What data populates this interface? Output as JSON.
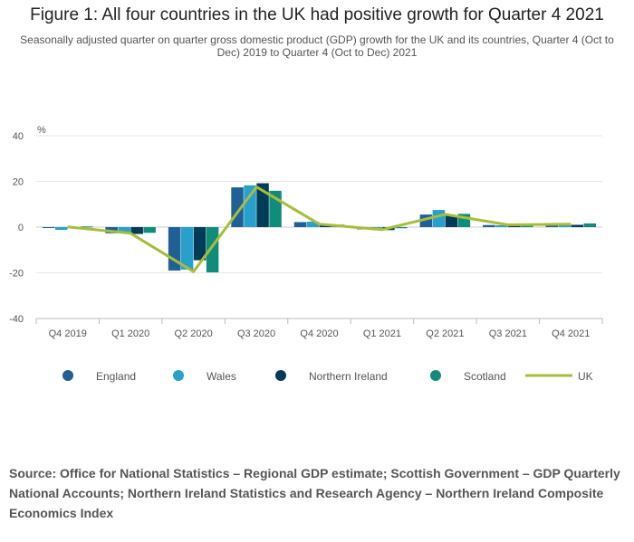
{
  "title": "Figure 1: All four countries in the UK had positive growth for Quarter 4 2021",
  "subtitle": "Seasonally adjusted quarter on quarter gross domestic product (GDP) growth for the UK and its countries, Quarter 4 (Oct to Dec) 2019 to Quarter 4 (Oct to Dec) 2021",
  "source": "Source: Office for National Statistics – Regional GDP estimate; Scottish Government – GDP Quarterly National Accounts; Northern Ireland Statistics and Research Agency – Northern Ireland Composite Economics Index",
  "chart_data": {
    "type": "bar",
    "title": "Figure 1: All four countries in the UK had positive growth for Quarter 4 2021",
    "ylabel": "%",
    "ylim": [
      -40,
      40
    ],
    "yticks": [
      40,
      20,
      0,
      -20,
      -40
    ],
    "grid": true,
    "legend_position": "bottom",
    "categories": [
      "Q4 2019",
      "Q1 2020",
      "Q2 2020",
      "Q3 2020",
      "Q4 2020",
      "Q1 2021",
      "Q2 2021",
      "Q3 2021",
      "Q4 2021"
    ],
    "series": [
      {
        "name": "England",
        "type": "bar",
        "color": "#206095",
        "values": [
          -0.3,
          -2.7,
          -19.0,
          17.4,
          2.2,
          -1.0,
          5.5,
          0.9,
          1.2
        ]
      },
      {
        "name": "Wales",
        "type": "bar",
        "color": "#27a0cc",
        "values": [
          -1.2,
          -2.2,
          -18.6,
          18.3,
          2.4,
          -0.8,
          7.5,
          0.8,
          1.1
        ]
      },
      {
        "name": "Northern Ireland",
        "type": "bar",
        "color": "#003c57",
        "values": [
          0.1,
          -3.0,
          -14.5,
          19.2,
          0.7,
          -1.3,
          5.2,
          0.7,
          1.0
        ]
      },
      {
        "name": "Scotland",
        "type": "bar",
        "color": "#118c7b",
        "values": [
          0.3,
          -2.5,
          -19.8,
          15.9,
          1.1,
          -0.5,
          5.8,
          0.6,
          1.6
        ]
      },
      {
        "name": "UK",
        "type": "line",
        "color": "#a8bd3a",
        "values": [
          0.1,
          -2.7,
          -19.5,
          17.6,
          1.3,
          -1.1,
          5.6,
          1.0,
          1.3
        ]
      }
    ]
  }
}
